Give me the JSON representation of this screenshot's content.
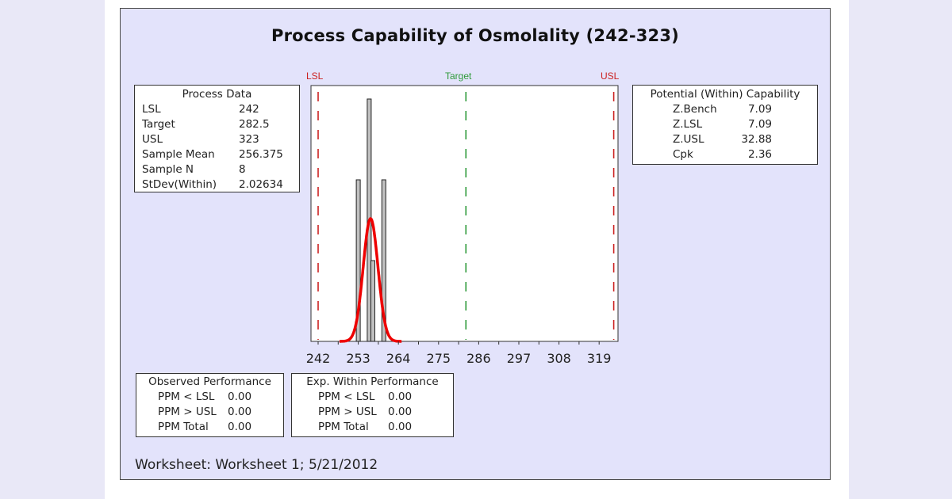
{
  "title": "Process Capability of Osmolality (242-323)",
  "spec_labels": {
    "lsl": "LSL",
    "target": "Target",
    "usl": "USL"
  },
  "colors": {
    "spec_limit": "#cc2222",
    "target": "#2e9a3a",
    "fit_curve": "#ee0000",
    "bar_fill": "#c0c0c0",
    "frame_bg": "#e3e3fb",
    "page_side_bg": "#e9e8f7"
  },
  "process_data": {
    "header": "Process Data",
    "rows": [
      {
        "label": "LSL",
        "value": "242"
      },
      {
        "label": "Target",
        "value": "282.5"
      },
      {
        "label": "USL",
        "value": "323"
      },
      {
        "label": "Sample Mean",
        "value": "256.375"
      },
      {
        "label": "Sample N",
        "value": "8"
      },
      {
        "label": "StDev(Within)",
        "value": "2.02634"
      }
    ]
  },
  "potential_capability": {
    "header": "Potential (Within) Capability",
    "rows": [
      {
        "label": "Z.Bench",
        "value": "7.09"
      },
      {
        "label": "Z.LSL",
        "value": "7.09"
      },
      {
        "label": "Z.USL",
        "value": "32.88"
      },
      {
        "label": "Cpk",
        "value": "2.36"
      }
    ]
  },
  "observed_performance": {
    "header": "Observed Performance",
    "rows": [
      {
        "label": "PPM < LSL",
        "value": "0.00"
      },
      {
        "label": "PPM > USL",
        "value": "0.00"
      },
      {
        "label": "PPM Total",
        "value": "0.00"
      }
    ]
  },
  "expected_within_performance": {
    "header": "Exp. Within Performance",
    "rows": [
      {
        "label": "PPM < LSL",
        "value": "0.00"
      },
      {
        "label": "PPM > USL",
        "value": "0.00"
      },
      {
        "label": "PPM Total",
        "value": "0.00"
      }
    ]
  },
  "footer": "Worksheet: Worksheet 1; 5/21/2012",
  "chart_data": {
    "type": "bar",
    "title": "Process Capability of Osmolality (242-323)",
    "xlabel": "",
    "ylabel": "",
    "x_ticks": [
      242,
      253,
      264,
      275,
      286,
      297,
      308,
      319
    ],
    "x_tick_labels": [
      "242",
      "253",
      "264",
      "275",
      "286",
      "297",
      "308",
      "319"
    ],
    "xlim": [
      240,
      324.5
    ],
    "histogram": {
      "bin_centers": [
        253.0,
        256.0,
        257.0,
        260.0
      ],
      "counts": [
        2,
        3,
        1,
        2
      ]
    },
    "normal_fit": {
      "mean": 256.375,
      "stdev": 2.02634,
      "name": "Within"
    },
    "reference_lines": [
      {
        "name": "LSL",
        "x": 242,
        "style": "dashed",
        "color": "#cc2222"
      },
      {
        "name": "Target",
        "x": 282.5,
        "style": "dashed",
        "color": "#2e9a3a"
      },
      {
        "name": "USL",
        "x": 323,
        "style": "dashed",
        "color": "#cc2222"
      }
    ],
    "grid": false,
    "legend": null
  }
}
